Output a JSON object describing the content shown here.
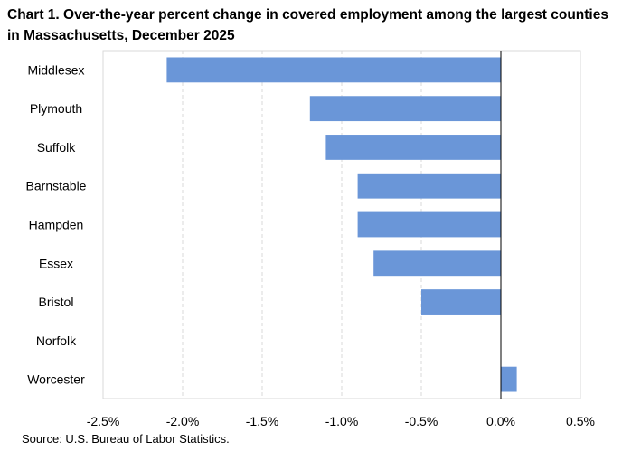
{
  "chart_data": {
    "type": "bar",
    "orientation": "horizontal",
    "title": "Chart 1. Over-the-year percent change in covered employment among the largest counties in Massachusetts, December 2025",
    "categories": [
      "Middlesex",
      "Plymouth",
      "Suffolk",
      "Barnstable",
      "Hampden",
      "Essex",
      "Bristol",
      "Norfolk",
      "Worcester"
    ],
    "values": [
      -2.1,
      -1.2,
      -1.1,
      -0.9,
      -0.9,
      -0.8,
      -0.5,
      0.0,
      0.1
    ],
    "xticks": [
      "-2.5%",
      "-2.0%",
      "-1.5%",
      "-1.0%",
      "-0.5%",
      "0.0%",
      "0.5%"
    ],
    "xlim": [
      -2.5,
      0.5
    ],
    "grid": "vertical dashed",
    "bar_color": "#6a96d8",
    "xlabel": "",
    "ylabel": ""
  },
  "footer": {
    "source": "Source: U.S. Bureau of Labor Statistics."
  }
}
